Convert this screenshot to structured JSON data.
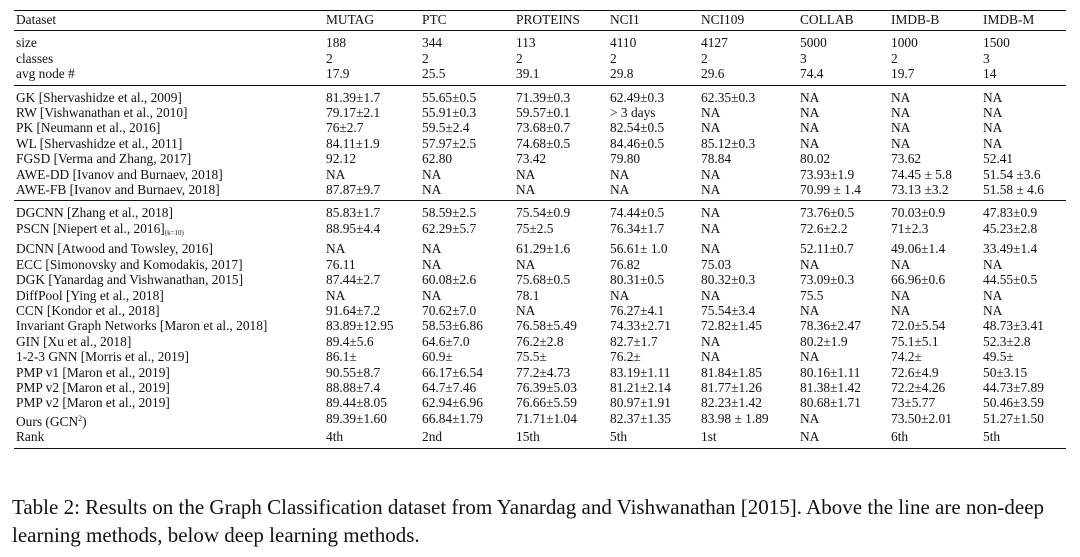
{
  "header": {
    "dataset": "Dataset",
    "columns": [
      "MUTAG",
      "PTC",
      "PROTEINS",
      "NCI1",
      "NCI109",
      "COLLAB",
      "IMDB-B",
      "IMDB-M"
    ]
  },
  "stats": [
    {
      "label": "size",
      "values": [
        "188",
        "344",
        "113",
        "4110",
        "4127",
        "5000",
        "1000",
        "1500"
      ]
    },
    {
      "label": "classes",
      "values": [
        "2",
        "2",
        "2",
        "2",
        "2",
        "3",
        "2",
        "3"
      ]
    },
    {
      "label": "avg node #",
      "values": [
        "17.9",
        "25.5",
        "39.1",
        "29.8",
        "29.6",
        "74.4",
        "19.7",
        "14"
      ]
    }
  ],
  "non_deep": [
    {
      "method": "GK [Shervashidze et al., 2009]",
      "values": [
        "81.39±1.7",
        "55.65±0.5",
        "71.39±0.3",
        "62.49±0.3",
        "62.35±0.3",
        "NA",
        "NA",
        "NA"
      ],
      "bold": []
    },
    {
      "method": "RW [Vishwanathan et al., 2010]",
      "values": [
        "79.17±2.1",
        "55.91±0.3",
        "59.57±0.1",
        "> 3 days",
        "NA",
        "NA",
        "NA",
        "NA"
      ],
      "bold": []
    },
    {
      "method": "PK [Neumann et al., 2016]",
      "values": [
        "76±2.7",
        "59.5±2.4",
        "73.68±0.7",
        "82.54±0.5",
        "NA",
        "NA",
        "NA",
        "NA"
      ],
      "bold": []
    },
    {
      "method": "WL [Shervashidze et al., 2011]",
      "values": [
        "84.11±1.9",
        "57.97±2.5",
        "74.68±0.5",
        "84.46±0.5",
        "85.12±0.3",
        "NA",
        "NA",
        "NA"
      ],
      "bold": [
        2,
        3,
        4
      ]
    },
    {
      "method": "FGSD [Verma and Zhang, 2017]",
      "values": [
        "92.12",
        "62.80",
        "73.42",
        "79.80",
        "78.84",
        "80.02",
        "73.62",
        "52.41"
      ],
      "bold": [
        0,
        1,
        5,
        7
      ]
    },
    {
      "method": "AWE-DD [Ivanov and Burnaev, 2018]",
      "values": [
        "NA",
        "NA",
        "NA",
        "NA",
        "NA",
        "73.93±1.9",
        "74.45 ± 5.8",
        "51.54 ±3.6"
      ],
      "bold": [
        6
      ]
    },
    {
      "method": "AWE-FB [Ivanov and Burnaev, 2018]",
      "values": [
        "87.87±9.7",
        "NA",
        "NA",
        "NA",
        "NA",
        "70.99 ± 1.4",
        "73.13 ±3.2",
        "51.58 ± 4.6"
      ],
      "bold": []
    }
  ],
  "deep": [
    {
      "method": "DGCNN [Zhang et al., 2018]",
      "values": [
        "85.83±1.7",
        "58.59±2.5",
        "75.54±0.9",
        "74.44±0.5",
        "NA",
        "73.76±0.5",
        "70.03±0.9",
        "47.83±0.9"
      ],
      "bold": []
    },
    {
      "method": "PSCN [Niepert et al., 2016]",
      "method_sub": "(k=10)",
      "values": [
        "88.95±4.4",
        "62.29±5.7",
        "75±2.5",
        "76.34±1.7",
        "NA",
        "72.6±2.2",
        "71±2.3",
        "45.23±2.8"
      ],
      "bold": []
    },
    {
      "method": "DCNN [Atwood and Towsley, 2016]",
      "values": [
        "NA",
        "NA",
        "61.29±1.6",
        "56.61± 1.0",
        "NA",
        "52.11±0.7",
        "49.06±1.4",
        "33.49±1.4"
      ],
      "bold": []
    },
    {
      "method": "ECC [Simonovsky and Komodakis, 2017]",
      "values": [
        "76.11",
        "NA",
        "NA",
        "76.82",
        "75.03",
        "NA",
        "NA",
        "NA"
      ],
      "bold": []
    },
    {
      "method": "DGK [Yanardag and Vishwanathan, 2015]",
      "values": [
        "87.44±2.7",
        "60.08±2.6",
        "75.68±0.5",
        "80.31±0.5",
        "80.32±0.3",
        "73.09±0.3",
        "66.96±0.6",
        "44.55±0.5"
      ],
      "bold": []
    },
    {
      "method": "DiffPool [Ying et al., 2018]",
      "values": [
        "NA",
        "NA",
        "78.1",
        "NA",
        "NA",
        "75.5",
        "NA",
        "NA"
      ],
      "bold": [
        2
      ]
    },
    {
      "method": "CCN [Kondor et al., 2018]",
      "values": [
        "91.64±7.2",
        "70.62±7.0",
        "NA",
        "76.27±4.1",
        "75.54±3.4",
        "NA",
        "NA",
        "NA"
      ],
      "bold": [
        0,
        1
      ]
    },
    {
      "method": "Invariant Graph Networks [Maron et al., 2018]",
      "values": [
        "83.89±12.95",
        "58.53±6.86",
        "76.58±5.49",
        "74.33±2.71",
        "72.82±1.45",
        "78.36±2.47",
        "72.0±5.54",
        "48.73±3.41"
      ],
      "bold": []
    },
    {
      "method": "GIN [Xu et al., 2018]",
      "values": [
        "89.4±5.6",
        "64.6±7.0",
        "76.2±2.8",
        "82.7±1.7",
        "NA",
        "80.2±1.9",
        "75.1±5.1",
        "52.3±2.8"
      ],
      "bold": [
        6,
        7
      ]
    },
    {
      "method": "1-2-3 GNN [Morris et al., 2019]",
      "values": [
        "86.1±",
        "60.9±",
        "75.5±",
        "76.2±",
        "NA",
        "NA",
        "74.2±",
        "49.5±"
      ],
      "bold": []
    },
    {
      "method": "PMP v1 [Maron et al., 2019]",
      "values": [
        "90.55±8.7",
        "66.17±6.54",
        "77.2±4.73",
        "83.19±1.11",
        "81.84±1.85",
        "80.16±1.11",
        "72.6±4.9",
        "50±3.15"
      ],
      "bold": [
        3
      ]
    },
    {
      "method": "PMP v2 [Maron et al., 2019]",
      "values": [
        "88.88±7.4",
        "64.7±7.46",
        "76.39±5.03",
        "81.21±2.14",
        "81.77±1.26",
        "81.38±1.42",
        "72.2±4.26",
        "44.73±7.89"
      ],
      "bold": [
        5
      ]
    },
    {
      "method": "PMP v2 [Maron et al., 2019]",
      "values": [
        "89.44±8.05",
        "62.94±6.96",
        "76.66±5.59",
        "80.97±1.91",
        "82.23±1.42",
        "80.68±1.71",
        "73±5.77",
        "50.46±3.59"
      ],
      "bold": [
        5
      ]
    },
    {
      "method": "Ours (GCN",
      "method_sup": "2",
      "method_tail": ")",
      "values": [
        "89.39±1.60",
        "66.84±1.79",
        "71.71±1.04",
        "82.37±1.35",
        "83.98 ± 1.89",
        "NA",
        "73.50±2.01",
        "51.27±1.50"
      ],
      "bold": [
        4
      ]
    },
    {
      "method": "Rank",
      "values": [
        "4th",
        "2nd",
        "15th",
        "5th",
        "1st",
        "NA",
        "6th",
        "5th"
      ],
      "bold": []
    }
  ],
  "caption": "Table 2: Results on the Graph Classification dataset from Yanardag and Vishwanathan [2015]. Above the line are non-deep learning methods, below deep learning methods."
}
